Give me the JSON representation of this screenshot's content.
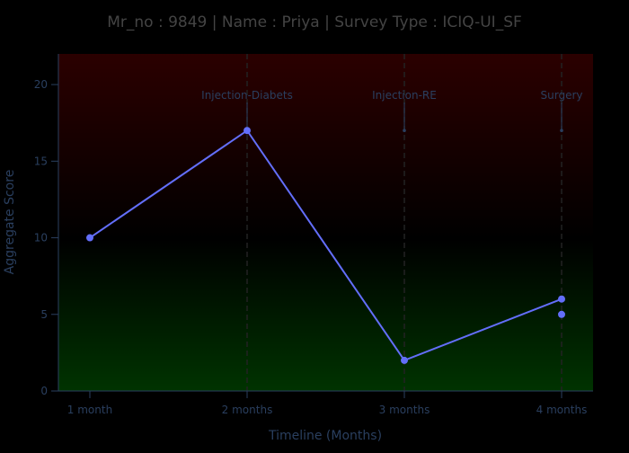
{
  "colors": {
    "page_bg": "#000000",
    "plot_top": "#2b0000",
    "plot_middle": "#000000",
    "plot_bottom": "#003300",
    "line": "#636efa",
    "axis_text": "#2a3f5f",
    "title_text": "#444444",
    "event_line": "#222222"
  },
  "chart_data": {
    "type": "line",
    "title": "Mr_no : 9849 | Name : Priya | Survey Type : ICIQ-UI_SF",
    "xlabel": "Timeline (Months)",
    "ylabel": "Aggregate Score",
    "categories": [
      "1 month",
      "2 months",
      "3 months",
      "4 months"
    ],
    "ylim": [
      0,
      22
    ],
    "yticks": [
      0,
      5,
      10,
      15,
      20
    ],
    "grid": false,
    "series": [
      {
        "values": [
          10,
          17,
          2,
          6
        ]
      }
    ],
    "extra_points": [
      {
        "x": "4 months",
        "y": 5
      }
    ],
    "events": [
      {
        "x": "2 months",
        "label": "Injection-Diabets",
        "marker_y": 17
      },
      {
        "x": "3 months",
        "label": "Injection-RE",
        "marker_y": 17
      },
      {
        "x": "4 months",
        "label": "Surgery",
        "marker_y": 17
      }
    ]
  }
}
